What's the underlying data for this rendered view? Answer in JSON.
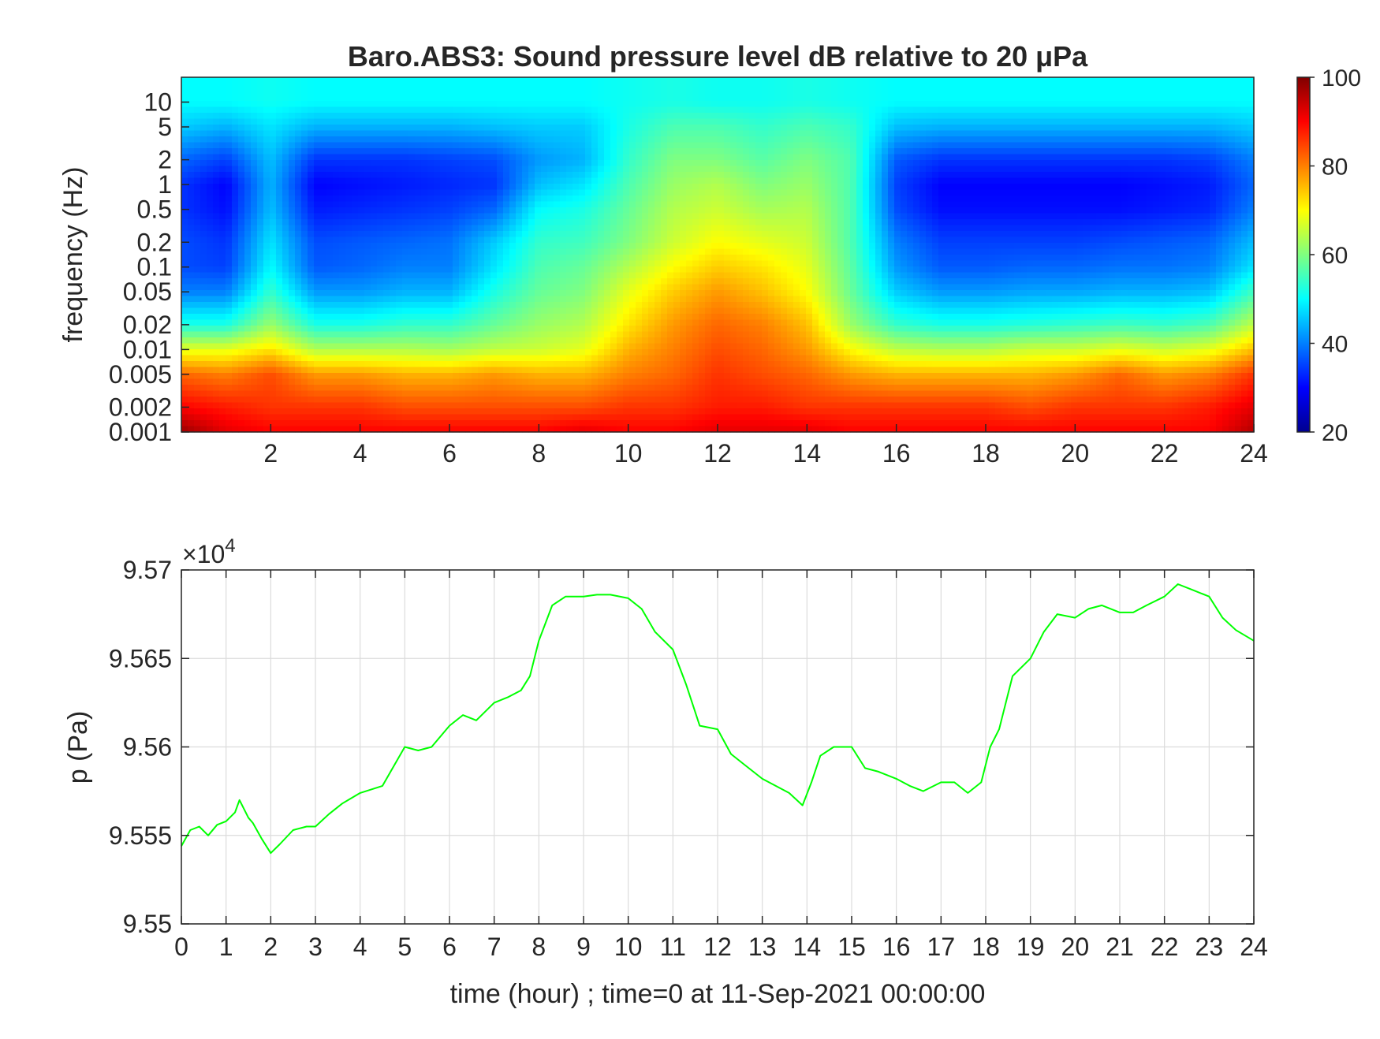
{
  "chart_data": [
    {
      "type": "heatmap",
      "title": "Baro.ABS3: Sound pressure level dB relative to 20 μPa",
      "ylabel": "frequency (Hz)",
      "xlabel": "",
      "y_scale": "log",
      "xlim": [
        0,
        24
      ],
      "ylim": [
        0.001,
        20
      ],
      "x_ticks": [
        "2",
        "4",
        "6",
        "8",
        "10",
        "12",
        "14",
        "16",
        "18",
        "20",
        "22",
        "24"
      ],
      "y_ticks": [
        "10",
        "5",
        "2",
        "1",
        "0.5",
        "0.2",
        "0.1",
        "0.05",
        "0.02",
        "0.01",
        "0.005",
        "0.002",
        "0.001"
      ],
      "colorbar": {
        "min": 20,
        "max": 100,
        "ticks": [
          "100",
          "80",
          "60",
          "40",
          "20"
        ],
        "colormap": "jet"
      },
      "levels_db": {
        "frequencies_hz": [
          10,
          5,
          2,
          1,
          0.5,
          0.2,
          0.1,
          0.05,
          0.02,
          0.01,
          0.005,
          0.002,
          0.001
        ],
        "times_hour": [
          0,
          1,
          2,
          3,
          4,
          5,
          6,
          7,
          8,
          9,
          10,
          11,
          12,
          13,
          14,
          15,
          16,
          17,
          18,
          19,
          20,
          21,
          22,
          23,
          24
        ],
        "values": [
          [
            50,
            50,
            51,
            50,
            50,
            50,
            50,
            50,
            50,
            50,
            51,
            52,
            51,
            51,
            52,
            51,
            50,
            50,
            50,
            50,
            50,
            50,
            50,
            50,
            50
          ],
          [
            46,
            44,
            48,
            44,
            44,
            44,
            44,
            45,
            46,
            46,
            52,
            56,
            56,
            54,
            56,
            54,
            45,
            44,
            44,
            44,
            44,
            44,
            44,
            44,
            46
          ],
          [
            38,
            35,
            45,
            34,
            34,
            34,
            35,
            36,
            42,
            44,
            54,
            60,
            60,
            57,
            60,
            56,
            37,
            34,
            34,
            34,
            34,
            34,
            34,
            35,
            40
          ],
          [
            34,
            30,
            44,
            30,
            31,
            32,
            33,
            34,
            45,
            48,
            56,
            62,
            64,
            60,
            62,
            56,
            35,
            30,
            30,
            30,
            30,
            30,
            31,
            32,
            38
          ],
          [
            34,
            31,
            45,
            32,
            33,
            34,
            35,
            38,
            50,
            52,
            58,
            64,
            66,
            63,
            64,
            56,
            36,
            31,
            31,
            31,
            31,
            31,
            32,
            33,
            40
          ],
          [
            36,
            34,
            48,
            36,
            37,
            38,
            39,
            46,
            54,
            55,
            60,
            66,
            70,
            68,
            66,
            56,
            40,
            35,
            35,
            35,
            35,
            36,
            37,
            38,
            45
          ],
          [
            36,
            35,
            50,
            37,
            38,
            40,
            40,
            48,
            56,
            58,
            64,
            70,
            74,
            72,
            68,
            57,
            42,
            37,
            37,
            38,
            38,
            39,
            39,
            40,
            48
          ],
          [
            40,
            40,
            54,
            42,
            42,
            44,
            44,
            52,
            58,
            60,
            68,
            74,
            78,
            75,
            70,
            58,
            46,
            42,
            42,
            43,
            43,
            44,
            44,
            45,
            55
          ],
          [
            52,
            52,
            62,
            52,
            52,
            54,
            54,
            58,
            62,
            64,
            72,
            78,
            82,
            80,
            75,
            62,
            54,
            52,
            52,
            53,
            54,
            55,
            54,
            56,
            65
          ],
          [
            68,
            68,
            72,
            64,
            64,
            64,
            63,
            65,
            66,
            68,
            76,
            80,
            84,
            82,
            78,
            70,
            65,
            64,
            64,
            66,
            66,
            68,
            66,
            68,
            75
          ],
          [
            82,
            80,
            84,
            78,
            78,
            76,
            76,
            78,
            76,
            76,
            80,
            82,
            86,
            84,
            82,
            78,
            76,
            76,
            76,
            76,
            78,
            82,
            78,
            80,
            86
          ],
          [
            90,
            88,
            86,
            86,
            86,
            84,
            84,
            84,
            84,
            84,
            86,
            86,
            88,
            88,
            86,
            86,
            86,
            86,
            86,
            84,
            86,
            86,
            86,
            88,
            92
          ],
          [
            98,
            92,
            90,
            90,
            90,
            90,
            90,
            90,
            90,
            92,
            90,
            90,
            92,
            92,
            92,
            90,
            90,
            90,
            90,
            90,
            90,
            90,
            90,
            90,
            96
          ]
        ]
      }
    },
    {
      "type": "line",
      "xlabel": "time (hour) ; time=0 at 11-Sep-2021 00:00:00",
      "ylabel": "p (Pa)",
      "exponent_label": "×10",
      "exponent_power": "4",
      "xlim": [
        0,
        24
      ],
      "ylim": [
        9.55,
        9.57
      ],
      "x_ticks": [
        "0",
        "1",
        "2",
        "3",
        "4",
        "5",
        "6",
        "7",
        "8",
        "9",
        "10",
        "11",
        "12",
        "13",
        "14",
        "15",
        "16",
        "17",
        "18",
        "19",
        "20",
        "21",
        "22",
        "23",
        "24"
      ],
      "y_ticks": [
        "9.57",
        "9.565",
        "9.56",
        "9.555",
        "9.55"
      ],
      "grid": true,
      "color": "#00ff00",
      "series": [
        {
          "x": [
            0,
            0.2,
            0.4,
            0.6,
            0.8,
            1.0,
            1.2,
            1.3,
            1.5,
            1.6,
            1.8,
            2.0,
            2.2,
            2.5,
            2.8,
            3.0,
            3.3,
            3.6,
            4.0,
            4.5,
            5.0,
            5.3,
            5.6,
            6.0,
            6.3,
            6.6,
            7.0,
            7.3,
            7.6,
            7.8,
            8.0,
            8.3,
            8.6,
            9.0,
            9.3,
            9.6,
            10.0,
            10.3,
            10.6,
            11.0,
            11.3,
            11.6,
            12.0,
            12.3,
            12.6,
            13.0,
            13.3,
            13.6,
            13.9,
            14.1,
            14.3,
            14.6,
            15.0,
            15.3,
            15.6,
            16.0,
            16.3,
            16.6,
            17.0,
            17.3,
            17.6,
            17.9,
            18.1,
            18.3,
            18.6,
            19.0,
            19.3,
            19.6,
            20.0,
            20.3,
            20.6,
            21.0,
            21.3,
            21.6,
            22.0,
            22.3,
            22.6,
            23.0,
            23.3,
            23.6,
            24.0
          ],
          "y": [
            9.5544,
            9.5553,
            9.5555,
            9.555,
            9.5556,
            9.5558,
            9.5563,
            9.557,
            9.556,
            9.5557,
            9.5548,
            9.554,
            9.5545,
            9.5553,
            9.5555,
            9.5555,
            9.5562,
            9.5568,
            9.5574,
            9.5578,
            9.56,
            9.5598,
            9.56,
            9.5612,
            9.5618,
            9.5615,
            9.5625,
            9.5628,
            9.5632,
            9.564,
            9.566,
            9.568,
            9.5685,
            9.5685,
            9.5686,
            9.5686,
            9.5684,
            9.5678,
            9.5665,
            9.5655,
            9.5635,
            9.5612,
            9.561,
            9.5596,
            9.559,
            9.5582,
            9.5578,
            9.5574,
            9.5567,
            9.558,
            9.5595,
            9.56,
            9.56,
            9.5588,
            9.5586,
            9.5582,
            9.5578,
            9.5575,
            9.558,
            9.558,
            9.5574,
            9.558,
            9.56,
            9.561,
            9.564,
            9.565,
            9.5665,
            9.5675,
            9.5673,
            9.5678,
            9.568,
            9.5676,
            9.5676,
            9.568,
            9.5685,
            9.5692,
            9.5689,
            9.5685,
            9.5673,
            9.5666,
            9.566
          ]
        }
      ]
    }
  ]
}
